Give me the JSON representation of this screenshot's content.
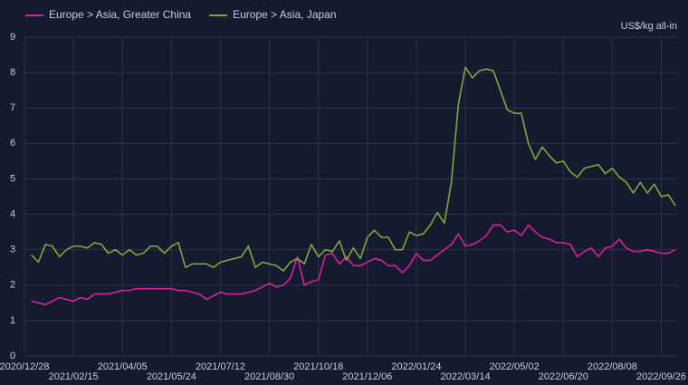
{
  "chart_data": {
    "type": "line",
    "unit_label": "US$/kg all-in",
    "x": [
      "2021/01/04",
      "2021/01/11",
      "2021/01/18",
      "2021/01/25",
      "2021/02/01",
      "2021/02/08",
      "2021/02/15",
      "2021/02/22",
      "2021/03/01",
      "2021/03/08",
      "2021/03/15",
      "2021/03/22",
      "2021/03/29",
      "2021/04/05",
      "2021/04/12",
      "2021/04/19",
      "2021/04/26",
      "2021/05/03",
      "2021/05/10",
      "2021/05/17",
      "2021/05/24",
      "2021/05/31",
      "2021/06/07",
      "2021/06/14",
      "2021/06/21",
      "2021/06/28",
      "2021/07/05",
      "2021/07/12",
      "2021/07/19",
      "2021/07/26",
      "2021/08/02",
      "2021/08/09",
      "2021/08/16",
      "2021/08/23",
      "2021/08/30",
      "2021/09/06",
      "2021/09/13",
      "2021/09/20",
      "2021/09/27",
      "2021/10/04",
      "2021/10/11",
      "2021/10/18",
      "2021/10/25",
      "2021/11/01",
      "2021/11/08",
      "2021/11/15",
      "2021/11/22",
      "2021/11/29",
      "2021/12/06",
      "2021/12/13",
      "2021/12/20",
      "2021/12/27",
      "2022/01/03",
      "2022/01/10",
      "2022/01/17",
      "2022/01/24",
      "2022/01/31",
      "2022/02/07",
      "2022/02/14",
      "2022/02/21",
      "2022/02/28",
      "2022/03/07",
      "2022/03/14",
      "2022/03/21",
      "2022/03/28",
      "2022/04/04",
      "2022/04/11",
      "2022/04/18",
      "2022/04/25",
      "2022/05/02",
      "2022/05/09",
      "2022/05/16",
      "2022/05/23",
      "2022/05/30",
      "2022/06/06",
      "2022/06/13",
      "2022/06/20",
      "2022/06/27",
      "2022/07/04",
      "2022/07/11",
      "2022/07/18",
      "2022/07/25",
      "2022/08/01",
      "2022/08/08",
      "2022/08/15",
      "2022/08/22",
      "2022/08/29",
      "2022/09/05",
      "2022/09/12",
      "2022/09/19",
      "2022/09/26",
      "2022/10/03",
      "2022/10/10"
    ],
    "series": [
      {
        "name": "Europe > Asia, Greater China",
        "color": "#d4239b",
        "values": [
          1.55,
          1.5,
          1.45,
          1.55,
          1.65,
          1.6,
          1.55,
          1.65,
          1.6,
          1.75,
          1.75,
          1.75,
          1.8,
          1.85,
          1.85,
          1.9,
          1.9,
          1.9,
          1.9,
          1.9,
          1.9,
          1.85,
          1.85,
          1.8,
          1.75,
          1.6,
          1.7,
          1.8,
          1.75,
          1.75,
          1.75,
          1.8,
          1.85,
          1.95,
          2.05,
          1.95,
          2.0,
          2.2,
          2.8,
          2.0,
          2.1,
          2.15,
          2.85,
          2.9,
          2.6,
          2.8,
          2.55,
          2.55,
          2.65,
          2.75,
          2.7,
          2.55,
          2.55,
          2.35,
          2.55,
          2.9,
          2.7,
          2.7,
          2.85,
          3.0,
          3.15,
          3.45,
          3.1,
          3.15,
          3.25,
          3.4,
          3.7,
          3.7,
          3.5,
          3.55,
          3.4,
          3.7,
          3.5,
          3.35,
          3.3,
          3.2,
          3.2,
          3.15,
          2.8,
          2.95,
          3.05,
          2.8,
          3.05,
          3.1,
          3.3,
          3.05,
          2.95,
          2.95,
          3.0,
          2.95,
          2.9,
          2.9,
          3.0
        ]
      },
      {
        "name": "Europe > Asia, Japan",
        "color": "#7fa83c",
        "values": [
          2.85,
          2.65,
          3.15,
          3.1,
          2.8,
          3.0,
          3.1,
          3.1,
          3.05,
          3.2,
          3.15,
          2.9,
          3.0,
          2.85,
          3.0,
          2.85,
          2.9,
          3.1,
          3.1,
          2.9,
          3.1,
          3.2,
          2.5,
          2.6,
          2.6,
          2.6,
          2.5,
          2.65,
          2.7,
          2.75,
          2.8,
          3.1,
          2.5,
          2.65,
          2.6,
          2.55,
          2.4,
          2.65,
          2.75,
          2.6,
          3.15,
          2.8,
          3.0,
          2.95,
          3.25,
          2.7,
          3.05,
          2.75,
          3.35,
          3.55,
          3.35,
          3.35,
          3.0,
          3.0,
          3.5,
          3.4,
          3.45,
          3.7,
          4.05,
          3.75,
          4.9,
          7.1,
          8.15,
          7.85,
          8.05,
          8.1,
          8.05,
          7.5,
          6.95,
          6.85,
          6.85,
          6.0,
          5.55,
          5.9,
          5.65,
          5.45,
          5.5,
          5.2,
          5.05,
          5.3,
          5.35,
          5.4,
          5.15,
          5.3,
          5.05,
          4.9,
          4.6,
          4.9,
          4.6,
          4.85,
          4.5,
          4.55,
          4.25
        ]
      }
    ],
    "xlim": [
      "2020/12/28",
      "2022/10/10"
    ],
    "xticks": [
      "2020/12/28",
      "2021/02/15",
      "2021/04/05",
      "2021/05/24",
      "2021/07/12",
      "2021/08/30",
      "2021/10/18",
      "2021/12/06",
      "2022/01/24",
      "2022/03/14",
      "2022/05/02",
      "2022/06/20",
      "2022/08/08",
      "2022/09/26"
    ],
    "ylim": [
      0,
      9
    ],
    "yticks": [
      0,
      1,
      2,
      3,
      4,
      5,
      6,
      7,
      8,
      9
    ],
    "grid": true,
    "legend": "top-left"
  }
}
